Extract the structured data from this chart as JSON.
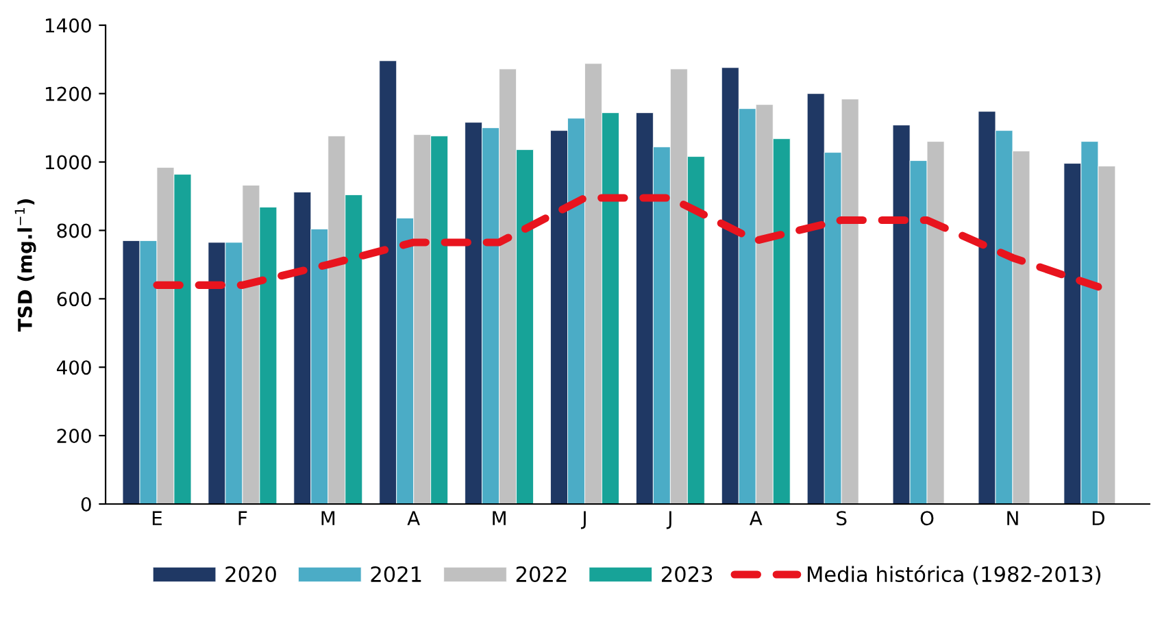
{
  "chart_data": {
    "type": "bar",
    "ylabel": "TSD (mg.l$^{−1}$)",
    "categories": [
      "E",
      "F",
      "M",
      "A",
      "M",
      "J",
      "J",
      "A",
      "S",
      "O",
      "N",
      "D"
    ],
    "ylim": [
      0,
      1400
    ],
    "yticks": [
      0,
      200,
      400,
      600,
      800,
      1000,
      1200,
      1400
    ],
    "grid": false,
    "legend": "bottom",
    "series": [
      {
        "name": "2020",
        "color": "#1f3864",
        "values": [
          770,
          765,
          912,
          1296,
          1116,
          1092,
          1144,
          1276,
          1200,
          1108,
          1148,
          996
        ]
      },
      {
        "name": "2021",
        "color": "#4bacc6",
        "values": [
          770,
          765,
          804,
          836,
          1100,
          1128,
          1044,
          1156,
          1028,
          1004,
          1092,
          1060
        ]
      },
      {
        "name": "2022",
        "color": "#c0c0c0",
        "values": [
          984,
          932,
          1076,
          1080,
          1272,
          1288,
          1272,
          1168,
          1184,
          1060,
          1032,
          988
        ]
      },
      {
        "name": "2023",
        "color": "#17a398",
        "values": [
          964,
          868,
          904,
          1076,
          1036,
          1144,
          1016,
          1068,
          null,
          null,
          null,
          null
        ]
      },
      {
        "name": "Media histórica (1982-2013)",
        "type": "line",
        "color": "#e8141e",
        "line_style": "dashed",
        "marker": "none",
        "values": [
          640,
          640,
          700,
          765,
          765,
          895,
          895,
          770,
          830,
          830,
          720,
          635
        ]
      }
    ]
  }
}
